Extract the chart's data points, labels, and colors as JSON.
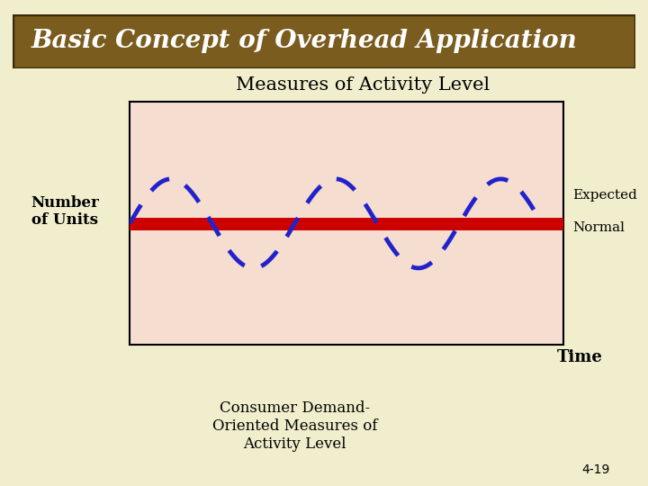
{
  "title": "Basic Concept of Overhead Application",
  "subtitle": "Measures of Activity Level",
  "ylabel": "Number\nof Units",
  "xlabel_center": "Consumer Demand-\nOriented Measures of\nActivity Level",
  "xlabel_right": "Time",
  "label_expected": "Expected",
  "label_normal": "Normal",
  "page_num": "4-19",
  "bg_color": "#f0eecc",
  "title_bg": "#7a5c1e",
  "title_fg": "#ffffff",
  "plot_bg": "#f5ddd0",
  "plot_border": "#000000",
  "red_line_color": "#cc0000",
  "blue_dash_color": "#2222cc",
  "annotation_color": "#000000",
  "wave_amplitude": 0.55,
  "wave_frequency": 2.5,
  "num_cycles": 2.5,
  "red_linewidth": 9,
  "blue_linewidth": 3.5,
  "dash_on": 5,
  "dash_off": 4
}
